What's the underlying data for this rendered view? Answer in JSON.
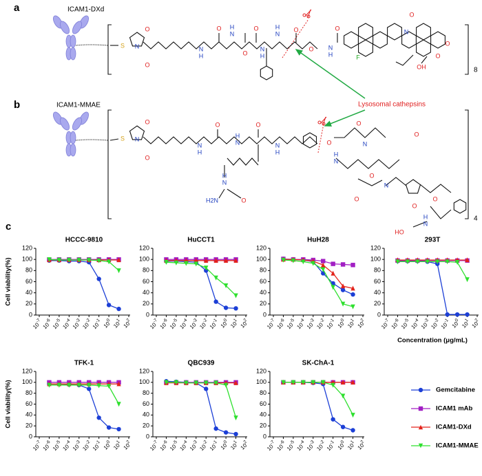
{
  "structure_a": {
    "label": "a",
    "name": "ICAM1-DXd",
    "repeat": 8,
    "atoms": [
      "S",
      "O",
      "N",
      "O",
      "N",
      "H",
      "O",
      "N",
      "H",
      "O",
      "N",
      "H",
      "O",
      "N",
      "H",
      "O",
      "O",
      "N",
      "H",
      "O",
      "N",
      "F",
      "O",
      "O",
      "O",
      "OH"
    ]
  },
  "annotation": "Lysosomal cathepsins",
  "structure_b": {
    "label": "b",
    "name": "ICAM1-MMAE",
    "repeat": 4,
    "atoms": [
      "S",
      "O",
      "N",
      "O",
      "N",
      "H",
      "O",
      "N",
      "H",
      "O",
      "N",
      "H",
      "H",
      "N",
      "O",
      "H2N",
      "O",
      "O",
      "N",
      "N",
      "H",
      "O",
      "O",
      "N",
      "O",
      "O",
      "O",
      "N",
      "H",
      "HO"
    ]
  },
  "panel_c_label": "c",
  "chart_data": [
    {
      "type": "line",
      "title": "HCCC-9810",
      "ylabel": "Cell viability(%)",
      "xscale": "log",
      "x": [
        1e-06,
        1e-05,
        0.0001,
        0.001,
        0.01,
        0.1,
        1,
        10
      ],
      "xlim": [
        1e-07,
        100
      ],
      "xticks": [
        {
          "value": 1e-07,
          "label": "10-7"
        },
        {
          "value": 1e-06,
          "label": "10-6"
        },
        {
          "value": 1e-05,
          "label": "10-5"
        },
        {
          "value": 0.0001,
          "label": "10-4"
        },
        {
          "value": 0.001,
          "label": "10-3"
        },
        {
          "value": 0.01,
          "label": "10-2"
        },
        {
          "value": 0.1,
          "label": "10-1"
        },
        {
          "value": 1,
          "label": "100"
        },
        {
          "value": 10,
          "label": "101"
        },
        {
          "value": 100,
          "label": "102"
        }
      ],
      "ylim": [
        0,
        120
      ],
      "yticks": [
        0,
        20,
        40,
        60,
        80,
        100,
        120
      ],
      "series": [
        {
          "name": "Gemcitabine",
          "color": "#1c3fd6",
          "marker": "circle",
          "values": [
            98,
            98,
            97,
            97,
            95,
            65,
            18,
            11
          ]
        },
        {
          "name": "ICAM1 mAb",
          "color": "#a21fc4",
          "marker": "square",
          "values": [
            100,
            100,
            100,
            100,
            100,
            100,
            100,
            100
          ]
        },
        {
          "name": "ICAM1-DXd",
          "color": "#e3231b",
          "marker": "triangle",
          "values": [
            99,
            99,
            99,
            99,
            99,
            99,
            99,
            99
          ]
        },
        {
          "name": "ICAM1-MMAE",
          "color": "#2ee02e",
          "marker": "triangle-down",
          "values": [
            100,
            99,
            99,
            99,
            99,
            98,
            96,
            80
          ]
        }
      ]
    },
    {
      "type": "line",
      "title": "HuCCT1",
      "xscale": "log",
      "x": [
        1e-06,
        1e-05,
        0.0001,
        0.001,
        0.01,
        0.1,
        1,
        10
      ],
      "xlim": [
        1e-07,
        100
      ],
      "xticks": [
        {
          "value": 1e-07,
          "label": "10-7"
        },
        {
          "value": 1e-06,
          "label": "10-6"
        },
        {
          "value": 1e-05,
          "label": "10-5"
        },
        {
          "value": 0.0001,
          "label": "10-4"
        },
        {
          "value": 0.001,
          "label": "10-3"
        },
        {
          "value": 0.01,
          "label": "10-2"
        },
        {
          "value": 0.1,
          "label": "10-1"
        },
        {
          "value": 1,
          "label": "100"
        },
        {
          "value": 10,
          "label": "101"
        },
        {
          "value": 100,
          "label": "102"
        }
      ],
      "ylim": [
        0,
        120
      ],
      "yticks": [
        0,
        20,
        40,
        60,
        80,
        100,
        120
      ],
      "series": [
        {
          "name": "Gemcitabine",
          "color": "#1c3fd6",
          "marker": "circle",
          "values": [
            97,
            97,
            96,
            95,
            80,
            24,
            13,
            12
          ]
        },
        {
          "name": "ICAM1 mAb",
          "color": "#a21fc4",
          "marker": "square",
          "values": [
            100,
            100,
            100,
            100,
            100,
            100,
            100,
            100
          ]
        },
        {
          "name": "ICAM1-DXd",
          "color": "#e3231b",
          "marker": "triangle",
          "values": [
            98,
            98,
            98,
            98,
            98,
            98,
            98,
            98
          ]
        },
        {
          "name": "ICAM1-MMAE",
          "color": "#2ee02e",
          "marker": "triangle-down",
          "values": [
            95,
            94,
            93,
            92,
            85,
            67,
            53,
            35
          ]
        }
      ]
    },
    {
      "type": "line",
      "title": "HuH28",
      "xscale": "log",
      "x": [
        1e-06,
        1e-05,
        0.0001,
        0.001,
        0.01,
        0.1,
        1,
        10
      ],
      "xlim": [
        1e-07,
        100
      ],
      "xticks": [
        {
          "value": 1e-07,
          "label": "10-7"
        },
        {
          "value": 1e-06,
          "label": "10-6"
        },
        {
          "value": 1e-05,
          "label": "10-5"
        },
        {
          "value": 0.0001,
          "label": "10-4"
        },
        {
          "value": 0.001,
          "label": "10-3"
        },
        {
          "value": 0.01,
          "label": "10-2"
        },
        {
          "value": 0.1,
          "label": "10-1"
        },
        {
          "value": 1,
          "label": "100"
        },
        {
          "value": 10,
          "label": "101"
        },
        {
          "value": 100,
          "label": "102"
        }
      ],
      "ylim": [
        0,
        120
      ],
      "yticks": [
        0,
        20,
        40,
        60,
        80,
        100,
        120
      ],
      "series": [
        {
          "name": "Gemcitabine",
          "color": "#1c3fd6",
          "marker": "circle",
          "values": [
            101,
            100,
            99,
            96,
            75,
            57,
            45,
            37
          ]
        },
        {
          "name": "ICAM1 mAb",
          "color": "#a21fc4",
          "marker": "square",
          "values": [
            101,
            100,
            100,
            99,
            97,
            92,
            91,
            90
          ]
        },
        {
          "name": "ICAM1-DXd",
          "color": "#e3231b",
          "marker": "triangle",
          "values": [
            100,
            100,
            99,
            97,
            90,
            75,
            52,
            48
          ]
        },
        {
          "name": "ICAM1-MMAE",
          "color": "#2ee02e",
          "marker": "triangle-down",
          "values": [
            99,
            98,
            96,
            93,
            82,
            50,
            20,
            15
          ]
        }
      ]
    },
    {
      "type": "line",
      "title": "293T",
      "xlabel": "Concentration (μg/mL)",
      "xscale": "log",
      "x": [
        1e-06,
        1e-05,
        0.0001,
        0.001,
        0.01,
        0.1,
        1,
        10
      ],
      "xlim": [
        1e-07,
        100
      ],
      "xticks": [
        {
          "value": 1e-07,
          "label": "10-7"
        },
        {
          "value": 1e-06,
          "label": "10-6"
        },
        {
          "value": 1e-05,
          "label": "10-5"
        },
        {
          "value": 0.0001,
          "label": "10-4"
        },
        {
          "value": 0.001,
          "label": "10-3"
        },
        {
          "value": 0.01,
          "label": "10-2"
        },
        {
          "value": 0.1,
          "label": "10-1"
        },
        {
          "value": 1,
          "label": "100"
        },
        {
          "value": 10,
          "label": "101"
        },
        {
          "value": 100,
          "label": "102"
        }
      ],
      "ylim": [
        0,
        120
      ],
      "yticks": [
        0,
        20,
        40,
        60,
        80,
        100,
        120
      ],
      "series": [
        {
          "name": "Gemcitabine",
          "color": "#1c3fd6",
          "marker": "circle",
          "values": [
            97,
            97,
            97,
            96,
            92,
            1,
            1,
            1
          ]
        },
        {
          "name": "ICAM1 mAb",
          "color": "#a21fc4",
          "marker": "square",
          "values": [
            98,
            98,
            98,
            98,
            98,
            98,
            98,
            98
          ]
        },
        {
          "name": "ICAM1-DXd",
          "color": "#e3231b",
          "marker": "triangle",
          "values": [
            99,
            99,
            99,
            99,
            99,
            99,
            99,
            99
          ]
        },
        {
          "name": "ICAM1-MMAE",
          "color": "#2ee02e",
          "marker": "triangle-down",
          "values": [
            96,
            96,
            96,
            96,
            96,
            96,
            95,
            64
          ]
        }
      ]
    },
    {
      "type": "line",
      "title": "TFK-1",
      "ylabel": "Cell viability(%)",
      "xscale": "log",
      "x": [
        1e-06,
        1e-05,
        0.0001,
        0.001,
        0.01,
        0.1,
        1,
        10
      ],
      "xlim": [
        1e-07,
        100
      ],
      "xticks": [
        {
          "value": 1e-07,
          "label": "10-7"
        },
        {
          "value": 1e-06,
          "label": "10-6"
        },
        {
          "value": 1e-05,
          "label": "10-5"
        },
        {
          "value": 0.0001,
          "label": "10-4"
        },
        {
          "value": 0.001,
          "label": "10-3"
        },
        {
          "value": 0.01,
          "label": "10-2"
        },
        {
          "value": 0.1,
          "label": "10-1"
        },
        {
          "value": 1,
          "label": "100"
        },
        {
          "value": 10,
          "label": "101"
        },
        {
          "value": 100,
          "label": "102"
        }
      ],
      "ylim": [
        0,
        120
      ],
      "yticks": [
        0,
        20,
        40,
        60,
        80,
        100,
        120
      ],
      "series": [
        {
          "name": "Gemcitabine",
          "color": "#1c3fd6",
          "marker": "circle",
          "values": [
            97,
            97,
            96,
            95,
            88,
            35,
            17,
            14
          ]
        },
        {
          "name": "ICAM1 mAb",
          "color": "#a21fc4",
          "marker": "square",
          "values": [
            100,
            100,
            100,
            100,
            100,
            100,
            100,
            100
          ]
        },
        {
          "name": "ICAM1-DXd",
          "color": "#e3231b",
          "marker": "triangle",
          "values": [
            97,
            97,
            97,
            97,
            97,
            97,
            97,
            97
          ]
        },
        {
          "name": "ICAM1-MMAE",
          "color": "#2ee02e",
          "marker": "triangle-down",
          "values": [
            95,
            95,
            95,
            95,
            95,
            94,
            93,
            60
          ]
        }
      ]
    },
    {
      "type": "line",
      "title": "QBC939",
      "xscale": "log",
      "x": [
        1e-06,
        1e-05,
        0.0001,
        0.001,
        0.01,
        0.1,
        1,
        10
      ],
      "xlim": [
        1e-07,
        100
      ],
      "xticks": [
        {
          "value": 1e-07,
          "label": "10-7"
        },
        {
          "value": 1e-06,
          "label": "10-6"
        },
        {
          "value": 1e-05,
          "label": "10-5"
        },
        {
          "value": 0.0001,
          "label": "10-4"
        },
        {
          "value": 0.001,
          "label": "10-3"
        },
        {
          "value": 0.01,
          "label": "10-2"
        },
        {
          "value": 0.1,
          "label": "10-1"
        },
        {
          "value": 1,
          "label": "100"
        },
        {
          "value": 10,
          "label": "101"
        },
        {
          "value": 100,
          "label": "102"
        }
      ],
      "ylim": [
        0,
        120
      ],
      "yticks": [
        0,
        20,
        40,
        60,
        80,
        100,
        120
      ],
      "series": [
        {
          "name": "Gemcitabine",
          "color": "#1c3fd6",
          "marker": "circle",
          "values": [
            102,
            101,
            100,
            99,
            88,
            15,
            8,
            5
          ]
        },
        {
          "name": "ICAM1 mAb",
          "color": "#a21fc4",
          "marker": "square",
          "values": [
            100,
            100,
            100,
            100,
            100,
            100,
            100,
            100
          ]
        },
        {
          "name": "ICAM1-DXd",
          "color": "#e3231b",
          "marker": "triangle",
          "values": [
            99,
            99,
            99,
            99,
            99,
            99,
            99,
            99
          ]
        },
        {
          "name": "ICAM1-MMAE",
          "color": "#2ee02e",
          "marker": "triangle-down",
          "values": [
            100,
            100,
            99,
            99,
            99,
            99,
            95,
            35
          ]
        }
      ]
    },
    {
      "type": "line",
      "title": "SK-ChA-1",
      "xscale": "log",
      "legend": "right",
      "x": [
        1e-06,
        1e-05,
        0.0001,
        0.001,
        0.01,
        0.1,
        1,
        10
      ],
      "xlim": [
        1e-07,
        100
      ],
      "xticks": [
        {
          "value": 1e-07,
          "label": "10-7"
        },
        {
          "value": 1e-06,
          "label": "10-6"
        },
        {
          "value": 1e-05,
          "label": "10-5"
        },
        {
          "value": 0.0001,
          "label": "10-4"
        },
        {
          "value": 0.001,
          "label": "10-3"
        },
        {
          "value": 0.01,
          "label": "10-2"
        },
        {
          "value": 0.1,
          "label": "10-1"
        },
        {
          "value": 1,
          "label": "100"
        },
        {
          "value": 10,
          "label": "101"
        },
        {
          "value": 100,
          "label": "102"
        }
      ],
      "ylim": [
        0,
        120
      ],
      "yticks": [
        0,
        20,
        40,
        60,
        80,
        100,
        120
      ],
      "series": [
        {
          "name": "Gemcitabine",
          "color": "#1c3fd6",
          "marker": "circle",
          "values": [
            100,
            100,
            100,
            99,
            97,
            32,
            18,
            12
          ]
        },
        {
          "name": "ICAM1 mAb",
          "color": "#a21fc4",
          "marker": "square",
          "values": [
            100,
            100,
            100,
            100,
            100,
            100,
            100,
            100
          ]
        },
        {
          "name": "ICAM1-DXd",
          "color": "#e3231b",
          "marker": "triangle",
          "values": [
            100,
            100,
            100,
            100,
            100,
            100,
            100,
            100
          ]
        },
        {
          "name": "ICAM1-MMAE",
          "color": "#2ee02e",
          "marker": "triangle-down",
          "values": [
            100,
            100,
            100,
            100,
            100,
            95,
            75,
            40
          ]
        }
      ]
    }
  ]
}
